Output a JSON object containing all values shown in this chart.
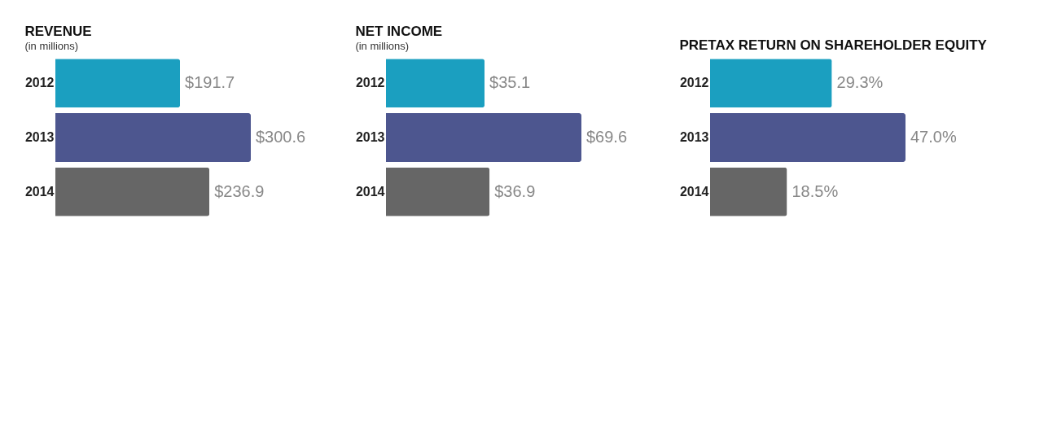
{
  "chart_data": [
    {
      "type": "bar",
      "title": "REVENUE",
      "subtitle": "(in millions)",
      "orientation": "horizontal",
      "categories": [
        "2012",
        "2013",
        "2014"
      ],
      "values": [
        191.7,
        300.6,
        236.9
      ],
      "colors": [
        "#1b9fc0",
        "#4d568f",
        "#666666"
      ],
      "value_labels": [
        "$191.7",
        "$300.6",
        "$236.9"
      ],
      "tick_labels": "y"
    },
    {
      "type": "bar",
      "title": "NET INCOME",
      "subtitle": "(in millions)",
      "orientation": "horizontal",
      "categories": [
        "2012",
        "2013",
        "2014"
      ],
      "values": [
        35.1,
        69.6,
        36.9
      ],
      "colors": [
        "#1b9fc0",
        "#4d568f",
        "#666666"
      ],
      "value_labels": [
        "$35.1",
        "$69.6",
        "$36.9"
      ],
      "tick_labels": "y"
    },
    {
      "type": "bar",
      "title": "PRETAX RETURN ON SHAREHOLDER EQUITY",
      "orientation": "horizontal",
      "categories": [
        "2012",
        "2013",
        "2014"
      ],
      "values": [
        29.3,
        47.0,
        18.5
      ],
      "colors": [
        "#1b9fc0",
        "#4d568f",
        "#666666"
      ],
      "value_labels": [
        "29.3%",
        "47.0%",
        "18.5%"
      ],
      "tick_labels": "y"
    }
  ]
}
